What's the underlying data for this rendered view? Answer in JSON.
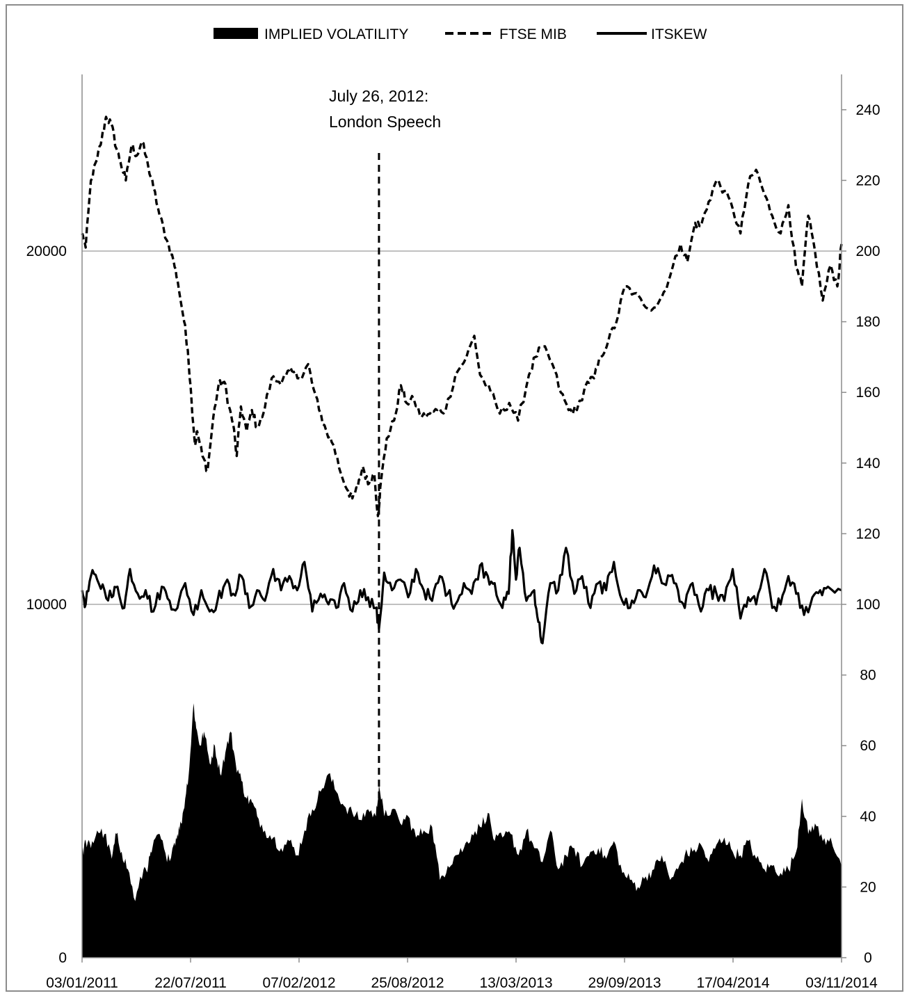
{
  "chart_data": {
    "type": "line",
    "legend_position": "top",
    "grid": "horizontal major only (left axis)",
    "legend": [
      {
        "label": "IMPLIED VOLATILITY",
        "style": "area",
        "color": "#000000"
      },
      {
        "label": "FTSE MIB",
        "style": "dashed-line",
        "color": "#000000"
      },
      {
        "label": "ITSKEW",
        "style": "solid-line",
        "color": "#000000"
      }
    ],
    "x_axis": {
      "type": "date",
      "range": [
        "2011-01-03",
        "2014-12-31"
      ],
      "tick_labels": [
        "03/01/2011",
        "22/07/2011",
        "07/02/2012",
        "25/08/2012",
        "13/03/2013",
        "29/09/2013",
        "17/04/2014",
        "03/11/2014"
      ]
    },
    "y_left": {
      "range": [
        0,
        25000
      ],
      "ticks": [
        0,
        10000,
        20000
      ],
      "series": [
        "FTSE MIB"
      ]
    },
    "y_right": {
      "range": [
        0,
        250
      ],
      "ticks": [
        0,
        20,
        40,
        60,
        80,
        100,
        120,
        140,
        160,
        180,
        200,
        220,
        240
      ],
      "series": [
        "IMPLIED VOLATILITY",
        "ITSKEW"
      ]
    },
    "annotation": {
      "date": "2012-07-26",
      "line1": "July 26, 2012:",
      "line2": "London Speech",
      "style": "dashed-vertical"
    },
    "series": [
      {
        "name": "FTSE MIB",
        "axis": "left",
        "style": "dashed",
        "color": "#000000",
        "x": [
          "2011-01-03",
          "2011-01-10",
          "2011-01-20",
          "2011-02-01",
          "2011-02-10",
          "2011-02-18",
          "2011-02-28",
          "2011-03-10",
          "2011-03-18",
          "2011-03-28",
          "2011-04-08",
          "2011-04-18",
          "2011-04-28",
          "2011-05-10",
          "2011-05-20",
          "2011-06-01",
          "2011-06-15",
          "2011-06-28",
          "2011-07-05",
          "2011-07-18",
          "2011-07-25",
          "2011-08-01",
          "2011-08-08",
          "2011-08-12",
          "2011-08-22",
          "2011-09-01",
          "2011-09-12",
          "2011-09-22",
          "2011-10-03",
          "2011-10-12",
          "2011-10-20",
          "2011-10-27",
          "2011-11-04",
          "2011-11-15",
          "2011-11-25",
          "2011-12-05",
          "2011-12-15",
          "2012-01-02",
          "2012-01-16",
          "2012-01-30",
          "2012-02-10",
          "2012-02-24",
          "2012-03-12",
          "2012-03-19",
          "2012-04-02",
          "2012-04-16",
          "2012-04-30",
          "2012-05-14",
          "2012-05-28",
          "2012-06-05",
          "2012-06-15",
          "2012-06-25",
          "2012-07-05",
          "2012-07-17",
          "2012-07-24",
          "2012-07-30",
          "2012-08-10",
          "2012-08-24",
          "2012-09-06",
          "2012-09-17",
          "2012-10-01",
          "2012-10-16",
          "2012-11-01",
          "2012-11-15",
          "2012-12-01",
          "2012-12-20",
          "2013-01-10",
          "2013-01-25",
          "2013-02-05",
          "2013-02-26",
          "2013-03-15",
          "2013-04-02",
          "2013-04-19",
          "2013-05-10",
          "2013-05-22",
          "2013-06-05",
          "2013-06-24",
          "2013-07-10",
          "2013-07-25",
          "2013-08-10",
          "2013-08-30",
          "2013-09-12",
          "2013-09-25",
          "2013-10-10",
          "2013-10-25",
          "2013-11-10",
          "2013-11-28",
          "2013-12-15",
          "2014-01-05",
          "2014-01-20",
          "2014-02-05",
          "2014-02-25",
          "2014-03-10",
          "2014-03-25",
          "2014-04-05",
          "2014-04-20",
          "2014-05-05",
          "2014-05-20",
          "2014-06-05",
          "2014-06-20",
          "2014-07-05",
          "2014-07-20",
          "2014-08-05",
          "2014-08-20",
          "2014-09-05",
          "2014-09-20",
          "2014-10-05",
          "2014-10-16",
          "2014-10-28",
          "2014-11-10",
          "2014-11-25",
          "2014-12-10",
          "2014-12-23",
          "2014-12-31"
        ],
        "y": [
          20500,
          20100,
          22000,
          22600,
          23200,
          23800,
          23600,
          22900,
          22500,
          22000,
          23000,
          22700,
          23100,
          22400,
          21800,
          21000,
          20300,
          19700,
          19200,
          18000,
          17200,
          15800,
          14500,
          14900,
          14200,
          13800,
          15300,
          16200,
          16300,
          15600,
          15100,
          14200,
          15600,
          14900,
          15500,
          15000,
          15300,
          16400,
          16300,
          16500,
          16600,
          16400,
          16800,
          16300,
          15500,
          14900,
          14500,
          13700,
          13200,
          13000,
          13300,
          13900,
          13400,
          13700,
          12500,
          13500,
          14700,
          15200,
          16200,
          15700,
          15800,
          15300,
          15400,
          15500,
          15500,
          16500,
          17000,
          17600,
          16500,
          16000,
          15400,
          15700,
          15200,
          16500,
          17000,
          17300,
          16800,
          16000,
          15500,
          15500,
          16300,
          16400,
          17000,
          17500,
          18000,
          19000,
          18800,
          18500,
          18400,
          18700,
          19300,
          20200,
          19700,
          20800,
          20700,
          21400,
          22000,
          21700,
          21200,
          20500,
          21900,
          22300,
          21600,
          21000,
          20500,
          21300,
          19500,
          19000,
          21000,
          20000,
          18600,
          19600,
          19000,
          20200
        ]
      },
      {
        "name": "ITSKEW",
        "axis": "right",
        "style": "solid",
        "color": "#000000",
        "x": [
          "2011-01-03",
          "2011-01-10",
          "2011-01-20",
          "2011-02-01",
          "2011-02-15",
          "2011-03-01",
          "2011-03-12",
          "2011-03-25",
          "2011-04-05",
          "2011-04-20",
          "2011-05-05",
          "2011-05-20",
          "2011-06-05",
          "2011-06-20",
          "2011-07-05",
          "2011-07-20",
          "2011-08-05",
          "2011-08-20",
          "2011-09-05",
          "2011-09-20",
          "2011-10-05",
          "2011-10-20",
          "2011-11-05",
          "2011-11-20",
          "2011-12-05",
          "2011-12-20",
          "2012-01-05",
          "2012-01-20",
          "2012-02-05",
          "2012-02-20",
          "2012-03-05",
          "2012-03-20",
          "2012-04-05",
          "2012-04-20",
          "2012-05-05",
          "2012-05-20",
          "2012-06-05",
          "2012-06-20",
          "2012-07-05",
          "2012-07-20",
          "2012-07-26",
          "2012-08-05",
          "2012-08-20",
          "2012-09-05",
          "2012-09-20",
          "2012-10-05",
          "2012-10-20",
          "2012-11-05",
          "2012-11-20",
          "2012-12-05",
          "2012-12-20",
          "2013-01-05",
          "2013-01-20",
          "2013-02-05",
          "2013-02-20",
          "2013-03-05",
          "2013-03-20",
          "2013-04-01",
          "2013-04-08",
          "2013-04-15",
          "2013-04-22",
          "2013-05-05",
          "2013-05-20",
          "2013-05-28",
          "2013-06-05",
          "2013-06-20",
          "2013-07-05",
          "2013-07-20",
          "2013-08-05",
          "2013-08-20",
          "2013-09-05",
          "2013-09-20",
          "2013-10-05",
          "2013-10-20",
          "2013-11-05",
          "2013-11-20",
          "2013-12-05",
          "2013-12-20",
          "2014-01-05",
          "2014-01-20",
          "2014-02-05",
          "2014-02-20",
          "2014-03-05",
          "2014-03-20",
          "2014-04-05",
          "2014-04-20",
          "2014-05-05",
          "2014-05-20",
          "2014-06-05",
          "2014-06-20",
          "2014-07-05",
          "2014-07-20",
          "2014-08-05",
          "2014-08-20",
          "2014-09-05",
          "2014-09-20",
          "2014-10-05",
          "2014-10-20",
          "2014-11-05",
          "2014-11-20",
          "2014-12-05",
          "2014-12-31"
        ],
        "y": [
          104,
          100,
          108,
          107,
          104,
          102,
          105,
          99,
          110,
          103,
          104,
          98,
          105,
          101,
          99,
          106,
          97,
          104,
          98,
          101,
          106,
          103,
          108,
          99,
          104,
          101,
          110,
          104,
          108,
          104,
          112,
          98,
          103,
          100,
          99,
          106,
          98,
          104,
          102,
          99,
          93,
          109,
          104,
          107,
          102,
          110,
          104,
          101,
          108,
          103,
          100,
          106,
          103,
          111,
          108,
          106,
          99,
          103,
          121,
          107,
          116,
          101,
          104,
          95,
          89,
          106,
          104,
          116,
          103,
          108,
          99,
          106,
          104,
          112,
          101,
          99,
          104,
          102,
          111,
          106,
          108,
          104,
          99,
          106,
          98,
          104,
          103,
          101,
          110,
          96,
          102,
          100,
          110,
          99,
          100,
          108,
          103,
          97,
          102,
          104,
          105,
          104
        ]
      },
      {
        "name": "IMPLIED VOLATILITY",
        "axis": "right",
        "style": "area",
        "color": "#000000",
        "x": [
          "2011-01-03",
          "2011-01-10",
          "2011-01-20",
          "2011-02-01",
          "2011-02-15",
          "2011-03-01",
          "2011-03-10",
          "2011-03-20",
          "2011-04-01",
          "2011-04-15",
          "2011-05-01",
          "2011-05-10",
          "2011-05-18",
          "2011-06-01",
          "2011-06-15",
          "2011-06-28",
          "2011-07-05",
          "2011-07-12",
          "2011-07-20",
          "2011-07-28",
          "2011-08-05",
          "2011-08-10",
          "2011-08-18",
          "2011-08-25",
          "2011-09-05",
          "2011-09-15",
          "2011-09-25",
          "2011-10-05",
          "2011-10-15",
          "2011-10-25",
          "2011-11-05",
          "2011-11-15",
          "2011-11-25",
          "2011-12-05",
          "2011-12-20",
          "2012-01-05",
          "2012-01-20",
          "2012-02-05",
          "2012-02-20",
          "2012-03-05",
          "2012-03-20",
          "2012-04-05",
          "2012-04-20",
          "2012-05-05",
          "2012-05-20",
          "2012-06-05",
          "2012-06-20",
          "2012-07-05",
          "2012-07-20",
          "2012-07-26",
          "2012-08-05",
          "2012-08-20",
          "2012-09-05",
          "2012-09-20",
          "2012-10-05",
          "2012-10-20",
          "2012-11-05",
          "2012-11-20",
          "2012-12-05",
          "2012-12-20",
          "2013-01-05",
          "2013-01-20",
          "2013-02-05",
          "2013-02-20",
          "2013-03-05",
          "2013-03-20",
          "2013-04-05",
          "2013-04-20",
          "2013-05-05",
          "2013-05-20",
          "2013-06-05",
          "2013-06-20",
          "2013-07-05",
          "2013-07-20",
          "2013-08-05",
          "2013-08-20",
          "2013-09-05",
          "2013-09-20",
          "2013-10-05",
          "2013-10-20",
          "2013-11-05",
          "2013-11-20",
          "2013-12-05",
          "2013-12-20",
          "2014-01-05",
          "2014-01-20",
          "2014-02-05",
          "2014-02-20",
          "2014-03-05",
          "2014-03-20",
          "2014-04-05",
          "2014-04-20",
          "2014-05-05",
          "2014-05-20",
          "2014-06-05",
          "2014-06-20",
          "2014-07-05",
          "2014-07-20",
          "2014-08-05",
          "2014-08-20",
          "2014-09-05",
          "2014-09-20",
          "2014-10-05",
          "2014-10-16",
          "2014-10-28",
          "2014-11-10",
          "2014-11-25",
          "2014-12-10",
          "2014-12-31"
        ],
        "y": [
          29,
          33,
          31,
          36,
          35,
          28,
          35,
          30,
          25,
          16,
          25,
          26,
          31,
          35,
          27,
          32,
          35,
          38,
          45,
          54,
          72,
          65,
          60,
          64,
          55,
          60,
          52,
          58,
          64,
          55,
          50,
          45,
          44,
          40,
          36,
          34,
          31,
          33,
          29,
          36,
          42,
          47,
          52,
          47,
          43,
          41,
          39,
          42,
          40,
          49,
          40,
          42,
          38,
          40,
          34,
          36,
          37,
          22,
          26,
          29,
          31,
          35,
          37,
          41,
          33,
          34,
          35,
          29,
          36,
          31,
          27,
          36,
          25,
          29,
          31,
          26,
          30,
          31,
          28,
          33,
          24,
          22,
          20,
          23,
          25,
          29,
          22,
          25,
          29,
          30,
          32,
          27,
          32,
          34,
          30,
          29,
          33,
          28,
          25,
          26,
          24,
          25,
          30,
          45,
          35,
          38,
          33,
          34,
          26
        ]
      }
    ]
  }
}
